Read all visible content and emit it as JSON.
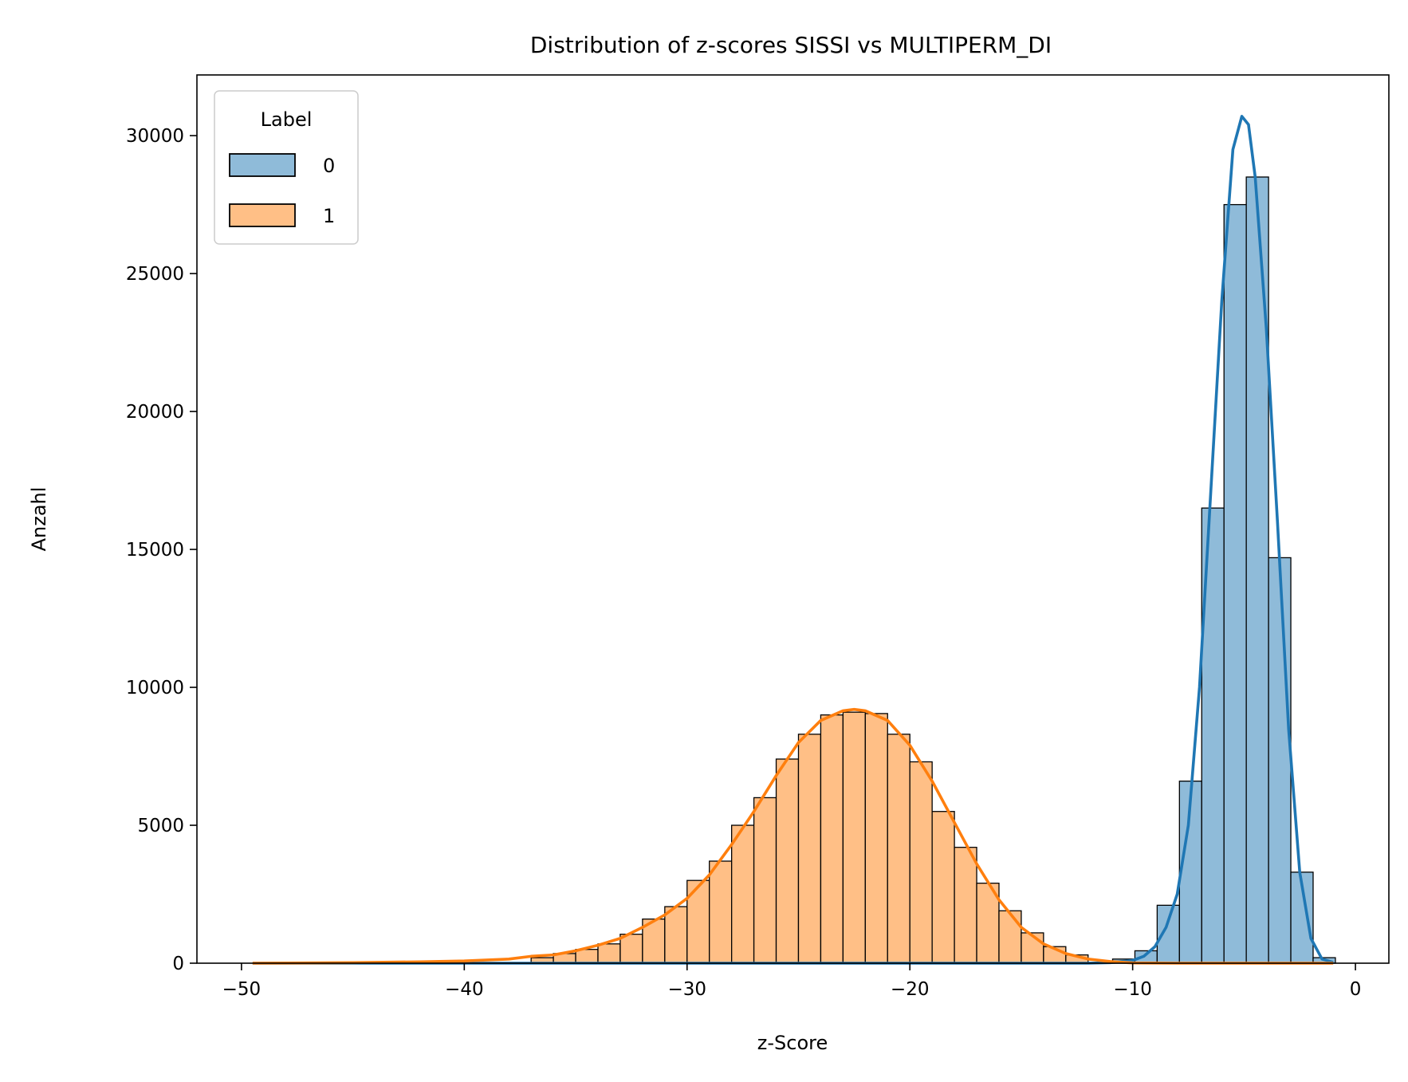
{
  "chart_data": {
    "type": "histogram",
    "title": "Distribution of z-scores SISSI vs MULTIPERM_DI",
    "xlabel": "z-Score",
    "ylabel": "Anzahl",
    "xlim": [
      -52,
      1.5
    ],
    "ylim": [
      0,
      32200
    ],
    "x_ticks": [
      -50,
      -40,
      -30,
      -20,
      -10,
      0
    ],
    "x_tick_labels": [
      "−50",
      "−40",
      "−30",
      "−20",
      "−10",
      "0"
    ],
    "y_ticks": [
      0,
      5000,
      10000,
      15000,
      20000,
      25000,
      30000
    ],
    "y_tick_labels": [
      "0",
      "5000",
      "10000",
      "15000",
      "20000",
      "25000",
      "30000"
    ],
    "grid": false,
    "legend": {
      "title": "Label",
      "position": "top-left",
      "entries": [
        {
          "label": "0",
          "color": "#1f77b4"
        },
        {
          "label": "1",
          "color": "#ff7f0e"
        }
      ]
    },
    "bin_width": 1.0,
    "series": [
      {
        "label": "0",
        "color": "#1f77b4",
        "fill": "#8fbbd9",
        "bins": [
          {
            "x0": -10.9,
            "x1": -9.9,
            "count": 150
          },
          {
            "x0": -9.9,
            "x1": -8.9,
            "count": 450
          },
          {
            "x0": -8.9,
            "x1": -7.9,
            "count": 2100
          },
          {
            "x0": -7.9,
            "x1": -6.9,
            "count": 6600
          },
          {
            "x0": -6.9,
            "x1": -5.9,
            "count": 16500
          },
          {
            "x0": -5.9,
            "x1": -4.9,
            "count": 27500
          },
          {
            "x0": -4.9,
            "x1": -3.9,
            "count": 28500
          },
          {
            "x0": -3.9,
            "x1": -2.9,
            "count": 14700
          },
          {
            "x0": -2.9,
            "x1": -1.9,
            "count": 3300
          },
          {
            "x0": -1.9,
            "x1": -0.9,
            "count": 200
          }
        ],
        "kde": [
          [
            -49.5,
            0
          ],
          [
            -12,
            0
          ],
          [
            -11,
            20
          ],
          [
            -10,
            100
          ],
          [
            -9.5,
            250
          ],
          [
            -9,
            600
          ],
          [
            -8.5,
            1300
          ],
          [
            -8,
            2500
          ],
          [
            -7.5,
            5000
          ],
          [
            -7,
            10000
          ],
          [
            -6.5,
            17000
          ],
          [
            -6,
            24000
          ],
          [
            -5.5,
            29500
          ],
          [
            -5.1,
            30700
          ],
          [
            -4.8,
            30400
          ],
          [
            -4.5,
            28500
          ],
          [
            -4,
            23000
          ],
          [
            -3.5,
            16000
          ],
          [
            -3,
            8500
          ],
          [
            -2.5,
            3300
          ],
          [
            -2,
            900
          ],
          [
            -1.5,
            150
          ],
          [
            -1,
            30
          ]
        ]
      },
      {
        "label": "1",
        "color": "#ff7f0e",
        "fill": "#ffbf86",
        "bins": [
          {
            "x0": -37.0,
            "x1": -36.0,
            "count": 200
          },
          {
            "x0": -36.0,
            "x1": -35.0,
            "count": 350
          },
          {
            "x0": -35.0,
            "x1": -34.0,
            "count": 500
          },
          {
            "x0": -34.0,
            "x1": -33.0,
            "count": 700
          },
          {
            "x0": -33.0,
            "x1": -32.0,
            "count": 1050
          },
          {
            "x0": -32.0,
            "x1": -31.0,
            "count": 1600
          },
          {
            "x0": -31.0,
            "x1": -30.0,
            "count": 2050
          },
          {
            "x0": -30.0,
            "x1": -29.0,
            "count": 3000
          },
          {
            "x0": -29.0,
            "x1": -28.0,
            "count": 3700
          },
          {
            "x0": -28.0,
            "x1": -27.0,
            "count": 5000
          },
          {
            "x0": -27.0,
            "x1": -26.0,
            "count": 6000
          },
          {
            "x0": -26.0,
            "x1": -25.0,
            "count": 7400
          },
          {
            "x0": -25.0,
            "x1": -24.0,
            "count": 8300
          },
          {
            "x0": -24.0,
            "x1": -23.0,
            "count": 9000
          },
          {
            "x0": -23.0,
            "x1": -22.0,
            "count": 9100
          },
          {
            "x0": -22.0,
            "x1": -21.0,
            "count": 9050
          },
          {
            "x0": -21.0,
            "x1": -20.0,
            "count": 8300
          },
          {
            "x0": -20.0,
            "x1": -19.0,
            "count": 7300
          },
          {
            "x0": -19.0,
            "x1": -18.0,
            "count": 5500
          },
          {
            "x0": -18.0,
            "x1": -17.0,
            "count": 4200
          },
          {
            "x0": -17.0,
            "x1": -16.0,
            "count": 2900
          },
          {
            "x0": -16.0,
            "x1": -15.0,
            "count": 1900
          },
          {
            "x0": -15.0,
            "x1": -14.0,
            "count": 1100
          },
          {
            "x0": -14.0,
            "x1": -13.0,
            "count": 600
          },
          {
            "x0": -13.0,
            "x1": -12.0,
            "count": 300
          }
        ],
        "kde": [
          [
            -49.5,
            0
          ],
          [
            -45,
            20
          ],
          [
            -42,
            50
          ],
          [
            -40,
            80
          ],
          [
            -38,
            150
          ],
          [
            -37,
            250
          ],
          [
            -36,
            300
          ],
          [
            -35,
            450
          ],
          [
            -34,
            650
          ],
          [
            -33,
            900
          ],
          [
            -32,
            1300
          ],
          [
            -31,
            1750
          ],
          [
            -30,
            2350
          ],
          [
            -29,
            3200
          ],
          [
            -28,
            4300
          ],
          [
            -27,
            5500
          ],
          [
            -26,
            6800
          ],
          [
            -25,
            8000
          ],
          [
            -24,
            8800
          ],
          [
            -23,
            9150
          ],
          [
            -22.5,
            9200
          ],
          [
            -22,
            9150
          ],
          [
            -21,
            8800
          ],
          [
            -20,
            7900
          ],
          [
            -19,
            6600
          ],
          [
            -18,
            5100
          ],
          [
            -17,
            3600
          ],
          [
            -16,
            2300
          ],
          [
            -15,
            1300
          ],
          [
            -14,
            700
          ],
          [
            -13,
            350
          ],
          [
            -12,
            150
          ],
          [
            -11,
            60
          ],
          [
            -10,
            10
          ],
          [
            -8,
            0
          ],
          [
            -1,
            0
          ]
        ]
      }
    ]
  }
}
